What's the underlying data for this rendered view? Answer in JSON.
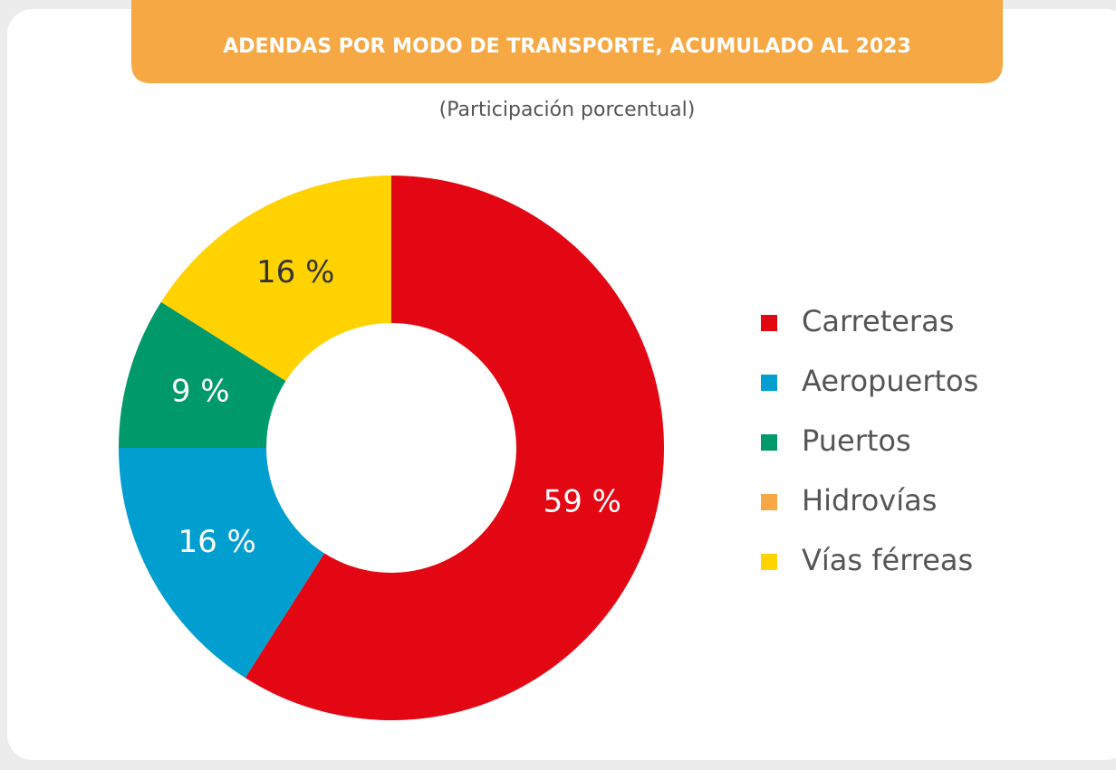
{
  "chart_data": {
    "type": "donut",
    "title": "ADENDAS POR MODO DE TRANSPORTE, ACUMULADO AL 2023",
    "subtitle": "(Participación porcentual)",
    "categories": [
      "Carreteras",
      "Aeropuertos",
      "Puertos",
      "Hidrovías",
      "Vías férreas"
    ],
    "values": [
      59,
      16,
      9,
      0,
      16
    ],
    "value_labels": [
      "59 %",
      "16 %",
      "9 %",
      null,
      "16 %"
    ],
    "colors": [
      "#e30613",
      "#009fcf",
      "#009a6a",
      "#f5a843",
      "#ffd200"
    ],
    "legend": "right"
  }
}
